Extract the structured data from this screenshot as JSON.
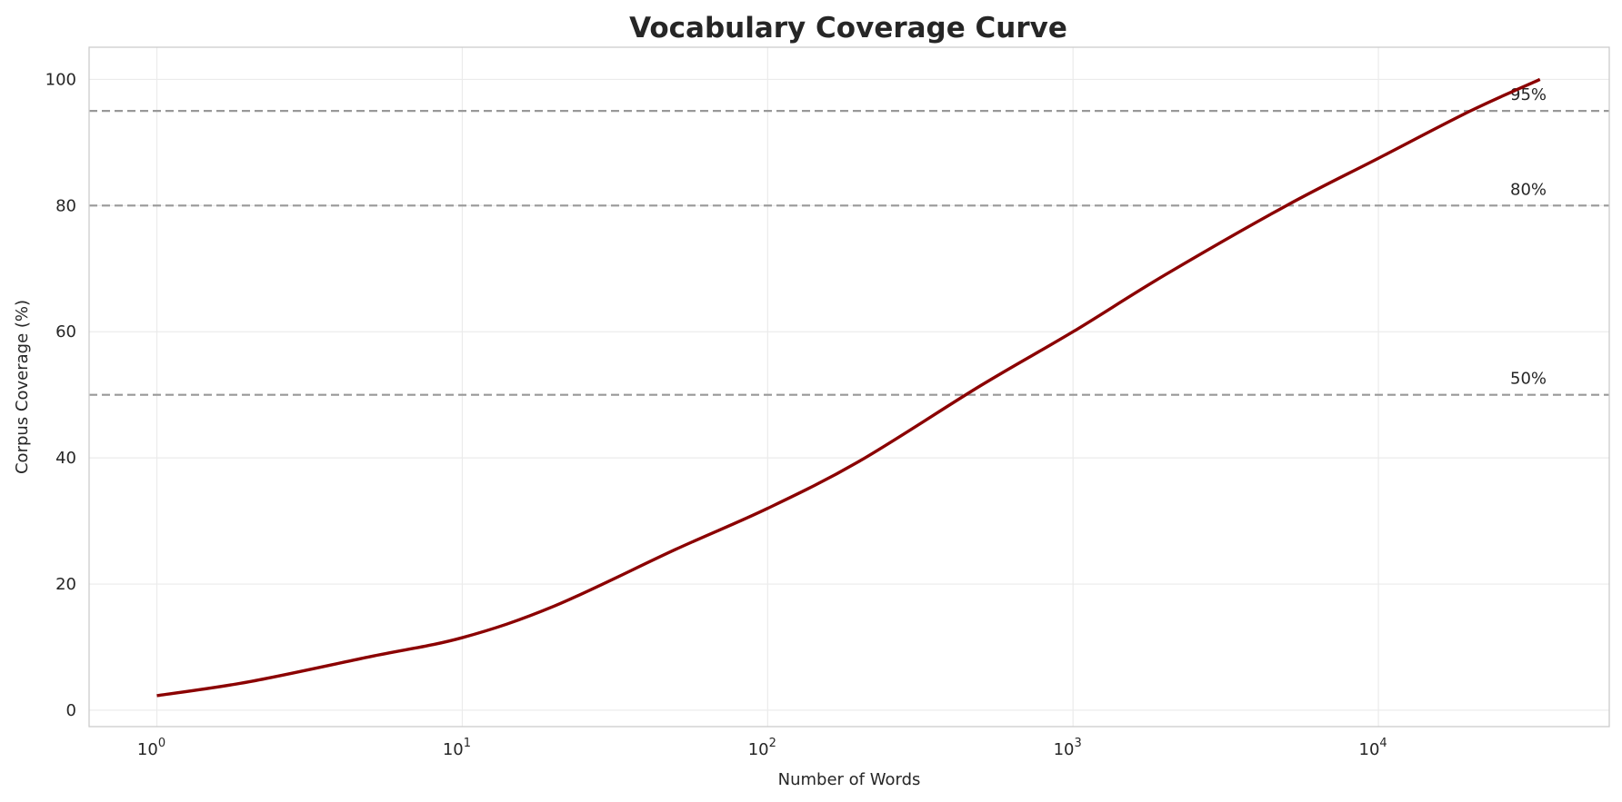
{
  "chart_data": {
    "type": "line",
    "title": "Vocabulary Coverage Curve",
    "xlabel": "Number of Words",
    "ylabel": "Corpus Coverage (%)",
    "xscale": "log",
    "xlim": [
      0.6,
      57000
    ],
    "ylim": [
      -2.6,
      105.1
    ],
    "xticks": [
      1,
      10,
      100,
      1000,
      10000
    ],
    "xtick_labels": [
      {
        "base": "10",
        "exp": "0"
      },
      {
        "base": "10",
        "exp": "1"
      },
      {
        "base": "10",
        "exp": "2"
      },
      {
        "base": "10",
        "exp": "3"
      },
      {
        "base": "10",
        "exp": "4"
      }
    ],
    "yticks": [
      0,
      20,
      40,
      60,
      80,
      100
    ],
    "ytick_labels": [
      "0",
      "20",
      "40",
      "60",
      "80",
      "100"
    ],
    "grid": true,
    "line_color": "#8b0000",
    "series": [
      {
        "x": [
          1,
          2,
          5,
          10,
          20,
          50,
          100,
          200,
          500,
          1000,
          2000,
          5000,
          10000,
          20000,
          33800
        ],
        "y": [
          2.3,
          4.5,
          8.5,
          11.5,
          16.5,
          25.5,
          32,
          39.5,
          51.5,
          60,
          69,
          80,
          87.5,
          95,
          100
        ]
      }
    ],
    "reference_lines": [
      {
        "y": 95,
        "label": "95%"
      },
      {
        "y": 80,
        "label": "80%"
      },
      {
        "y": 50,
        "label": "50%"
      }
    ],
    "reference_color": "#999999"
  }
}
